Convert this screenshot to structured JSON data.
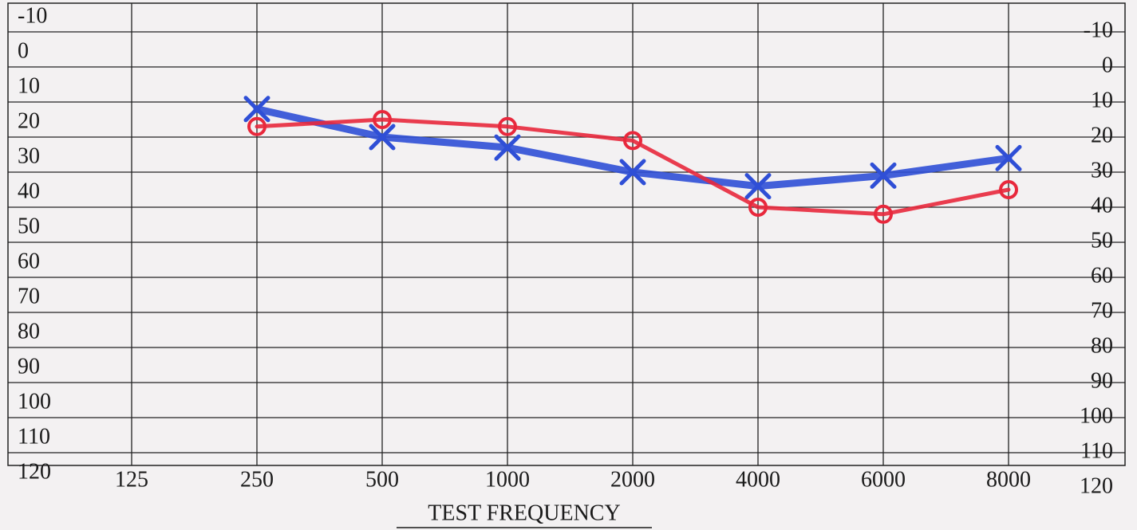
{
  "chart_data": {
    "type": "line",
    "x_label": "TEST FREQUENCY",
    "categories": [
      "125",
      "250",
      "500",
      "1000",
      "2000",
      "4000",
      "6000",
      "8000"
    ],
    "series": [
      {
        "color": "#2f4fd6",
        "marker": "x",
        "values": [
          null,
          12,
          20,
          23,
          30,
          34,
          31,
          26
        ]
      },
      {
        "color": "#e8283c",
        "marker": "o",
        "values": [
          null,
          17,
          15,
          17,
          21,
          40,
          42,
          35
        ]
      }
    ],
    "ylim": [
      -10,
      120
    ],
    "y_inverted": true,
    "yticks": [
      -10,
      0,
      10,
      20,
      30,
      40,
      50,
      60,
      70,
      80,
      90,
      100,
      110,
      120
    ],
    "grid": true
  }
}
